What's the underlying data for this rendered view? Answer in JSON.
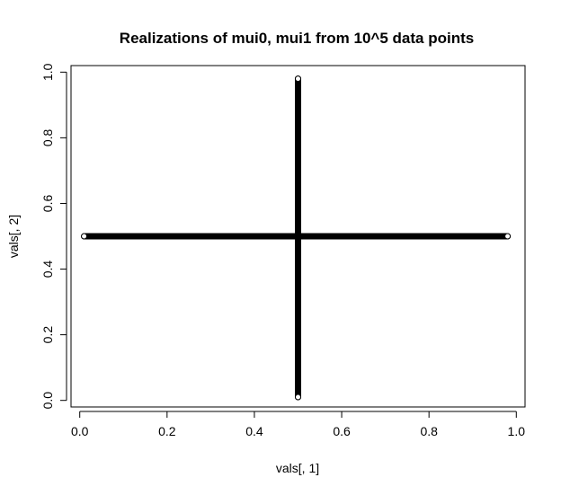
{
  "chart_data": {
    "type": "scatter",
    "title": "Realizations of mui0, mui1 from 10^5 data points",
    "xlabel": "vals[, 1]",
    "ylabel": "vals[, 2]",
    "xlim": [
      -0.02,
      1.02
    ],
    "ylim": [
      -0.02,
      1.02
    ],
    "grid": false,
    "marker": "open-circle",
    "colors": {
      "points": "#000000",
      "axes": "#000000",
      "background": "#ffffff"
    },
    "x_ticks": [
      "0.0",
      "0.2",
      "0.4",
      "0.6",
      "0.8",
      "1.0"
    ],
    "y_ticks": [
      "0.0",
      "0.2",
      "0.4",
      "0.6",
      "0.8",
      "1.0"
    ],
    "series": [
      {
        "x_range": [
          0.01,
          0.98
        ],
        "y_value": 0.5,
        "x": [
          0.01,
          0.98
        ],
        "y": [
          0.5,
          0.5
        ]
      },
      {
        "x_value": 0.5,
        "y_range": [
          0.01,
          0.98
        ],
        "x": [
          0.5,
          0.5
        ],
        "y": [
          0.01,
          0.98
        ]
      }
    ]
  }
}
